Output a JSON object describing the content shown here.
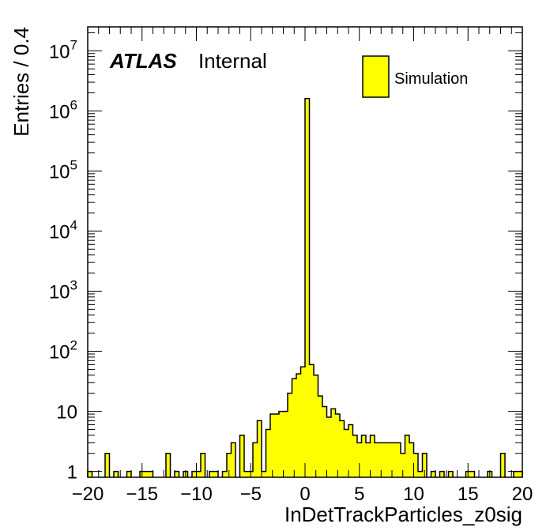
{
  "chart_data": {
    "type": "bar",
    "histogram": true,
    "xlabel": "InDetTrackParticles_z0sig",
    "ylabel": "Entries / 0.4",
    "xlim": [
      -20,
      20
    ],
    "ylim": [
      0.8,
      25000000
    ],
    "yscale": "log",
    "bin_width": 0.4,
    "fill_color": "#ffff00",
    "line_color": "#000000",
    "x_ticks": [
      -20,
      -15,
      -10,
      -5,
      0,
      5,
      10,
      15,
      20
    ],
    "x_tick_labels": [
      "−20",
      "−15",
      "−10",
      "−5",
      "0",
      "5",
      "10",
      "15",
      "20"
    ],
    "y_ticks": [
      {
        "value": 1,
        "base": "1",
        "exp": ""
      },
      {
        "value": 10,
        "base": "10",
        "exp": ""
      },
      {
        "value": 100,
        "base": "10",
        "exp": "2"
      },
      {
        "value": 1000,
        "base": "10",
        "exp": "3"
      },
      {
        "value": 10000,
        "base": "10",
        "exp": "4"
      },
      {
        "value": 100000,
        "base": "10",
        "exp": "5"
      },
      {
        "value": 1000000,
        "base": "10",
        "exp": "6"
      },
      {
        "value": 10000000,
        "base": "10",
        "exp": "7"
      }
    ],
    "bins": [
      {
        "x": -20.0,
        "y": 1
      },
      {
        "x": -18.4,
        "y": 2
      },
      {
        "x": -17.6,
        "y": 1
      },
      {
        "x": -16.4,
        "y": 1
      },
      {
        "x": -15.2,
        "y": 1
      },
      {
        "x": -14.8,
        "y": 1
      },
      {
        "x": -14.4,
        "y": 1
      },
      {
        "x": -12.8,
        "y": 2
      },
      {
        "x": -12.0,
        "y": 1
      },
      {
        "x": -11.2,
        "y": 1
      },
      {
        "x": -10.4,
        "y": 1
      },
      {
        "x": -10.0,
        "y": 1
      },
      {
        "x": -9.6,
        "y": 2
      },
      {
        "x": -8.8,
        "y": 1
      },
      {
        "x": -8.4,
        "y": 1
      },
      {
        "x": -7.6,
        "y": 1
      },
      {
        "x": -7.2,
        "y": 2
      },
      {
        "x": -6.8,
        "y": 3
      },
      {
        "x": -6.0,
        "y": 4
      },
      {
        "x": -5.6,
        "y": 1
      },
      {
        "x": -5.2,
        "y": 1
      },
      {
        "x": -4.8,
        "y": 3
      },
      {
        "x": -4.4,
        "y": 7
      },
      {
        "x": -4.0,
        "y": 1
      },
      {
        "x": -3.6,
        "y": 5
      },
      {
        "x": -3.2,
        "y": 9
      },
      {
        "x": -2.8,
        "y": 9
      },
      {
        "x": -2.4,
        "y": 10
      },
      {
        "x": -2.0,
        "y": 10
      },
      {
        "x": -1.6,
        "y": 20
      },
      {
        "x": -1.2,
        "y": 35
      },
      {
        "x": -0.8,
        "y": 42
      },
      {
        "x": -0.4,
        "y": 55
      },
      {
        "x": 0.0,
        "y": 1600000
      },
      {
        "x": 0.4,
        "y": 60
      },
      {
        "x": 0.8,
        "y": 40
      },
      {
        "x": 1.2,
        "y": 18
      },
      {
        "x": 1.6,
        "y": 12
      },
      {
        "x": 2.0,
        "y": 8
      },
      {
        "x": 2.4,
        "y": 11
      },
      {
        "x": 2.8,
        "y": 9
      },
      {
        "x": 3.2,
        "y": 7
      },
      {
        "x": 3.6,
        "y": 5
      },
      {
        "x": 4.0,
        "y": 6
      },
      {
        "x": 4.4,
        "y": 4
      },
      {
        "x": 4.8,
        "y": 3
      },
      {
        "x": 5.2,
        "y": 4
      },
      {
        "x": 5.6,
        "y": 3
      },
      {
        "x": 6.0,
        "y": 4
      },
      {
        "x": 6.4,
        "y": 3
      },
      {
        "x": 6.8,
        "y": 3
      },
      {
        "x": 7.2,
        "y": 3
      },
      {
        "x": 7.6,
        "y": 3
      },
      {
        "x": 8.0,
        "y": 3
      },
      {
        "x": 8.4,
        "y": 3
      },
      {
        "x": 8.8,
        "y": 2
      },
      {
        "x": 9.2,
        "y": 4
      },
      {
        "x": 9.6,
        "y": 3
      },
      {
        "x": 10.0,
        "y": 2
      },
      {
        "x": 10.4,
        "y": 1
      },
      {
        "x": 10.8,
        "y": 2
      },
      {
        "x": 11.6,
        "y": 1
      },
      {
        "x": 12.4,
        "y": 1
      },
      {
        "x": 13.2,
        "y": 1
      },
      {
        "x": 14.8,
        "y": 1
      },
      {
        "x": 15.2,
        "y": 1
      },
      {
        "x": 16.8,
        "y": 1
      },
      {
        "x": 18.0,
        "y": 2
      },
      {
        "x": 19.2,
        "y": 1
      },
      {
        "x": 19.6,
        "y": 1
      }
    ],
    "annotations": {
      "experiment": "ATLAS",
      "status": "Internal"
    },
    "legend": {
      "placement": "top-right",
      "entries": [
        {
          "name": "Simulation",
          "color": "#ffff00"
        }
      ]
    },
    "grid": false
  }
}
